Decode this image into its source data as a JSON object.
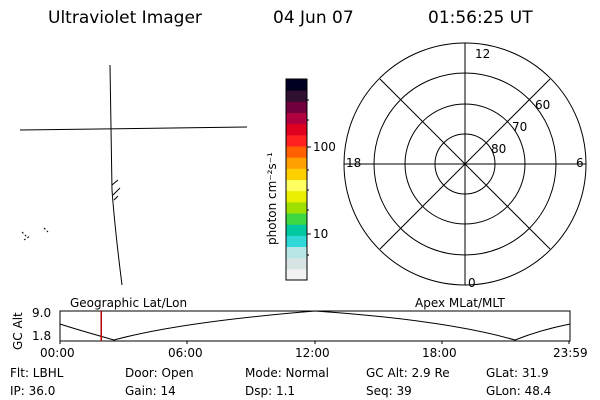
{
  "header": {
    "title": "Ultraviolet Imager",
    "date": "04 Jun 07",
    "time": "01:56:25 UT"
  },
  "colorbar": {
    "unit_label": "photon cm⁻²s⁻¹",
    "tick_100": "100",
    "tick_10": "10",
    "colors": [
      "#f2f2f2",
      "#d8e4e4",
      "#b6e6e6",
      "#30d8d8",
      "#00c8a0",
      "#40d840",
      "#a0e000",
      "#e8f000",
      "#ffff60",
      "#ffd000",
      "#ffa000",
      "#ff6000",
      "#ff2020",
      "#e00020",
      "#b00040",
      "#700040",
      "#301030",
      "#000020"
    ]
  },
  "polar": {
    "mlt_12": "12",
    "mlt_18": "18",
    "mlt_6": "6",
    "mlt_0": "0",
    "lat_60": "60",
    "lat_70": "70",
    "lat_80": "80"
  },
  "timeline": {
    "y_label": "GC Alt",
    "y_max": "9.0",
    "y_min": "1.8",
    "left_caption": "Geographic Lat/Lon",
    "right_caption": "Apex MLat/MLT",
    "ticks": [
      "00:00",
      "06:00",
      "12:00",
      "18:00",
      "23:59"
    ],
    "current_time_hours": 1.94
  },
  "info": {
    "filter": "Flt: LBHL",
    "door": "Door: Open",
    "mode": "Mode: Normal",
    "gc_alt": "GC Alt: 2.9 Re",
    "glat": "GLat:  31.9",
    "ip": "IP: 36.0",
    "gain": "Gain: 14",
    "dsp": "Dsp:    1.1",
    "seq": "Seq: 39",
    "glon": "GLon:  48.4"
  }
}
